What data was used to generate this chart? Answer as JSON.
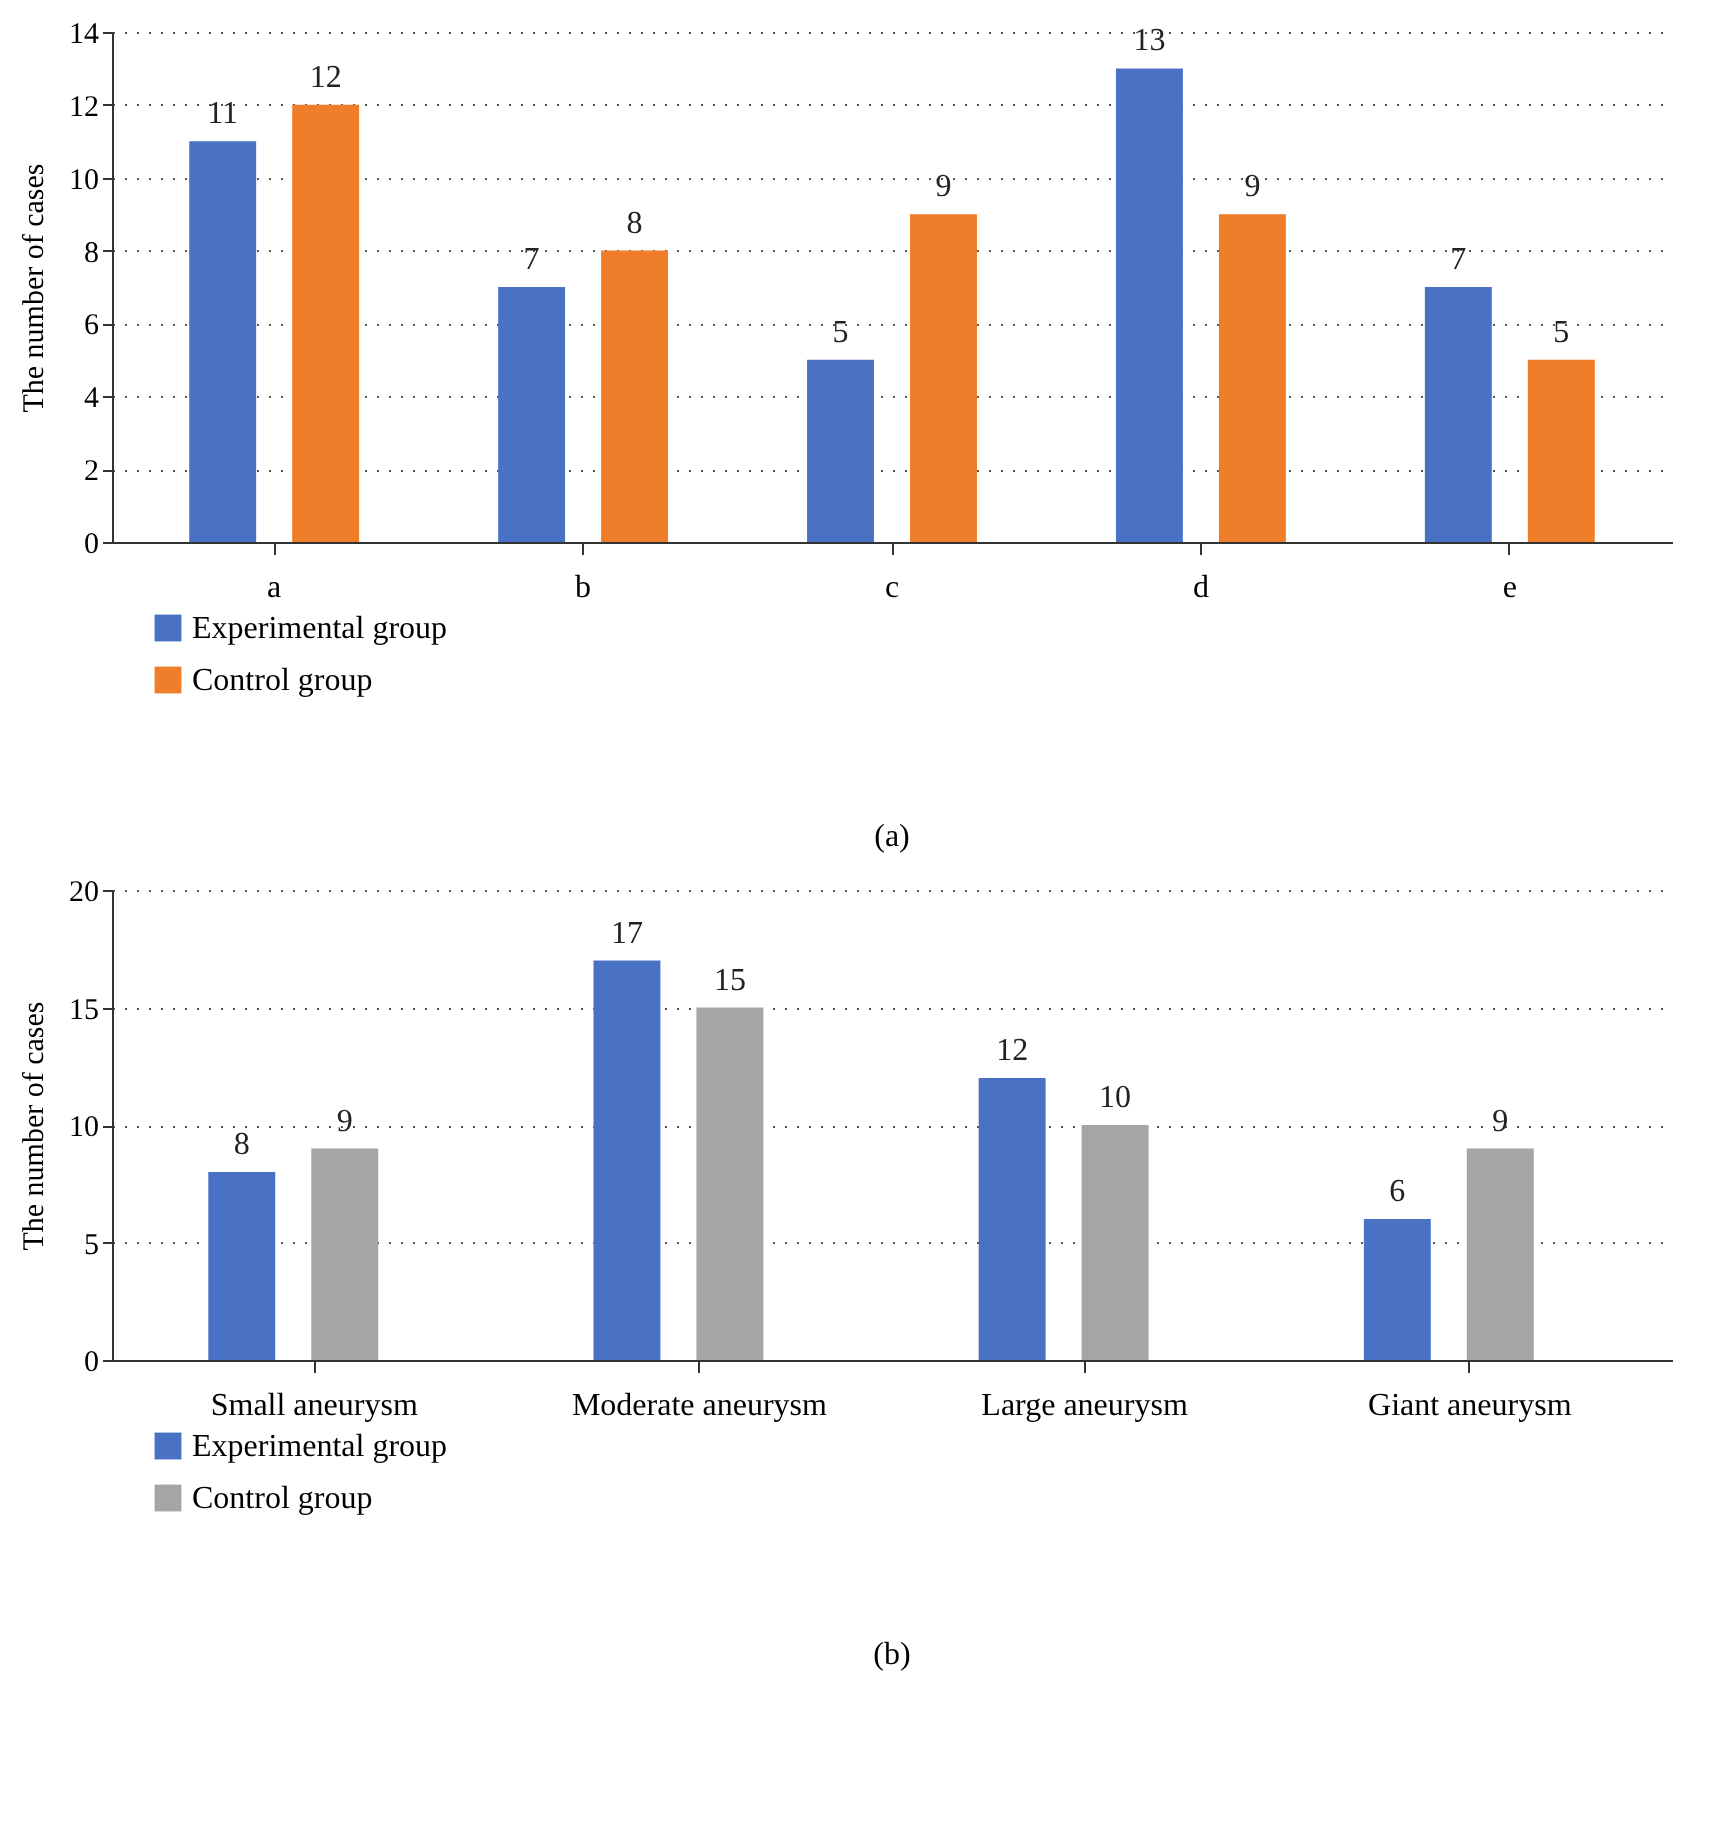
{
  "chart_data": [
    {
      "type": "bar",
      "ylabel": "The number of cases",
      "categories": [
        "a",
        "b",
        "c",
        "d",
        "e"
      ],
      "series": [
        {
          "name": "Experimental group",
          "color": "#4a72c4",
          "values": [
            11,
            7,
            5,
            13,
            7
          ]
        },
        {
          "name": "Control group",
          "color": "#ef7d2a",
          "values": [
            12,
            8,
            9,
            9,
            5
          ]
        }
      ],
      "ylim": [
        0,
        14
      ],
      "yticks": [
        0,
        2,
        4,
        6,
        8,
        10,
        12,
        14
      ],
      "grid": "y",
      "legend": "bottom left",
      "data_labels": true,
      "annotations": [
        "(a)"
      ]
    },
    {
      "type": "bar",
      "ylabel": "The number of cases",
      "categories": [
        "Small aneurysm",
        "Moderate aneurysm",
        "Large aneurysm",
        "Giant aneurysm"
      ],
      "series": [
        {
          "name": "Experimental group",
          "color": "#4a72c4",
          "values": [
            8,
            17,
            12,
            6
          ]
        },
        {
          "name": "Control group",
          "color": "#a5a5a5",
          "values": [
            9,
            15,
            10,
            9
          ]
        }
      ],
      "ylim": [
        0,
        20
      ],
      "yticks": [
        0,
        5,
        10,
        15,
        20
      ],
      "grid": "y",
      "legend": "bottom left",
      "data_labels": true,
      "annotations": [
        "(b)"
      ]
    }
  ]
}
